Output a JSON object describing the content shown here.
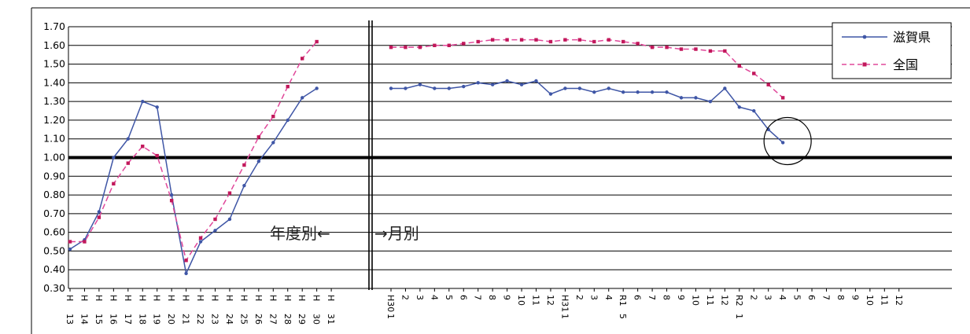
{
  "chart_data": {
    "type": "line",
    "ylim": [
      0.3,
      1.7
    ],
    "yticks": [
      "1.70",
      "1.60",
      "1.50",
      "1.40",
      "1.30",
      "1.20",
      "1.10",
      "1.00",
      "0.90",
      "0.80",
      "0.70",
      "0.60",
      "0.50",
      "0.40",
      "0.30"
    ],
    "reference_line": 1.0,
    "annotations": {
      "yearly": "年度別←",
      "monthly": "→月別"
    },
    "legend": {
      "position": "top-right"
    },
    "annual": {
      "categories": [
        {
          "top": "H",
          "bottom": "13"
        },
        {
          "top": "H",
          "bottom": "14"
        },
        {
          "top": "H",
          "bottom": "15"
        },
        {
          "top": "H",
          "bottom": "16"
        },
        {
          "top": "H",
          "bottom": "17"
        },
        {
          "top": "H",
          "bottom": "18"
        },
        {
          "top": "H",
          "bottom": "19"
        },
        {
          "top": "H",
          "bottom": "20"
        },
        {
          "top": "H",
          "bottom": "21"
        },
        {
          "top": "H",
          "bottom": "22"
        },
        {
          "top": "H",
          "bottom": "23"
        },
        {
          "top": "H",
          "bottom": "24"
        },
        {
          "top": "H",
          "bottom": "25"
        },
        {
          "top": "H",
          "bottom": "26"
        },
        {
          "top": "H",
          "bottom": "27"
        },
        {
          "top": "H",
          "bottom": "28"
        },
        {
          "top": "H",
          "bottom": "29"
        },
        {
          "top": "H",
          "bottom": "30"
        },
        {
          "top": "H",
          "bottom": "31"
        }
      ],
      "series": [
        {
          "name": "滋賀県",
          "color": "#3f56a6",
          "values": [
            0.51,
            0.56,
            0.71,
            1.0,
            1.1,
            1.3,
            1.27,
            0.8,
            0.38,
            0.55,
            0.61,
            0.67,
            0.85,
            0.98,
            1.08,
            1.2,
            1.32,
            1.37,
            null
          ]
        },
        {
          "name": "全国",
          "color": "#e0489a",
          "values": [
            0.55,
            0.55,
            0.68,
            0.86,
            0.97,
            1.06,
            1.01,
            0.77,
            0.45,
            0.57,
            0.67,
            0.81,
            0.96,
            1.11,
            1.22,
            1.38,
            1.53,
            1.62,
            null
          ]
        }
      ]
    },
    "monthly": {
      "categories": [
        {
          "top": "H30",
          "bottom": "1"
        },
        {
          "top": "2"
        },
        {
          "top": "3"
        },
        {
          "top": "4"
        },
        {
          "top": "5"
        },
        {
          "top": "6"
        },
        {
          "top": "7"
        },
        {
          "top": "8"
        },
        {
          "top": "9"
        },
        {
          "top": "10"
        },
        {
          "top": "11"
        },
        {
          "top": "12"
        },
        {
          "top": "H31",
          "bottom": "1"
        },
        {
          "top": "2"
        },
        {
          "top": "3"
        },
        {
          "top": "4"
        },
        {
          "top": "R1",
          "bottom": "5"
        },
        {
          "top": "6"
        },
        {
          "top": "7"
        },
        {
          "top": "8"
        },
        {
          "top": "9"
        },
        {
          "top": "10"
        },
        {
          "top": "11"
        },
        {
          "top": "12"
        },
        {
          "top": "R2",
          "bottom": "1"
        },
        {
          "top": "2"
        },
        {
          "top": "3"
        },
        {
          "top": "4"
        },
        {
          "top": "5"
        },
        {
          "top": "6"
        },
        {
          "top": "7"
        },
        {
          "top": "8"
        },
        {
          "top": "9"
        },
        {
          "top": "10"
        },
        {
          "top": "11"
        },
        {
          "top": "12"
        }
      ],
      "series": [
        {
          "name": "滋賀県",
          "color": "#3f56a6",
          "values": [
            1.37,
            1.37,
            1.39,
            1.37,
            1.37,
            1.38,
            1.4,
            1.39,
            1.41,
            1.39,
            1.41,
            1.34,
            1.37,
            1.37,
            1.35,
            1.37,
            1.35,
            1.35,
            1.35,
            1.35,
            1.32,
            1.32,
            1.3,
            1.37,
            1.27,
            1.25,
            1.15,
            1.08
          ]
        },
        {
          "name": "全国",
          "color": "#e0489a",
          "values": [
            1.59,
            1.59,
            1.59,
            1.6,
            1.6,
            1.61,
            1.62,
            1.63,
            1.63,
            1.63,
            1.63,
            1.62,
            1.63,
            1.63,
            1.62,
            1.63,
            1.62,
            1.61,
            1.59,
            1.59,
            1.58,
            1.58,
            1.57,
            1.57,
            1.49,
            1.45,
            1.39,
            1.32
          ]
        }
      ]
    },
    "highlight": {
      "series": "滋賀県",
      "category_index": 27
    }
  }
}
